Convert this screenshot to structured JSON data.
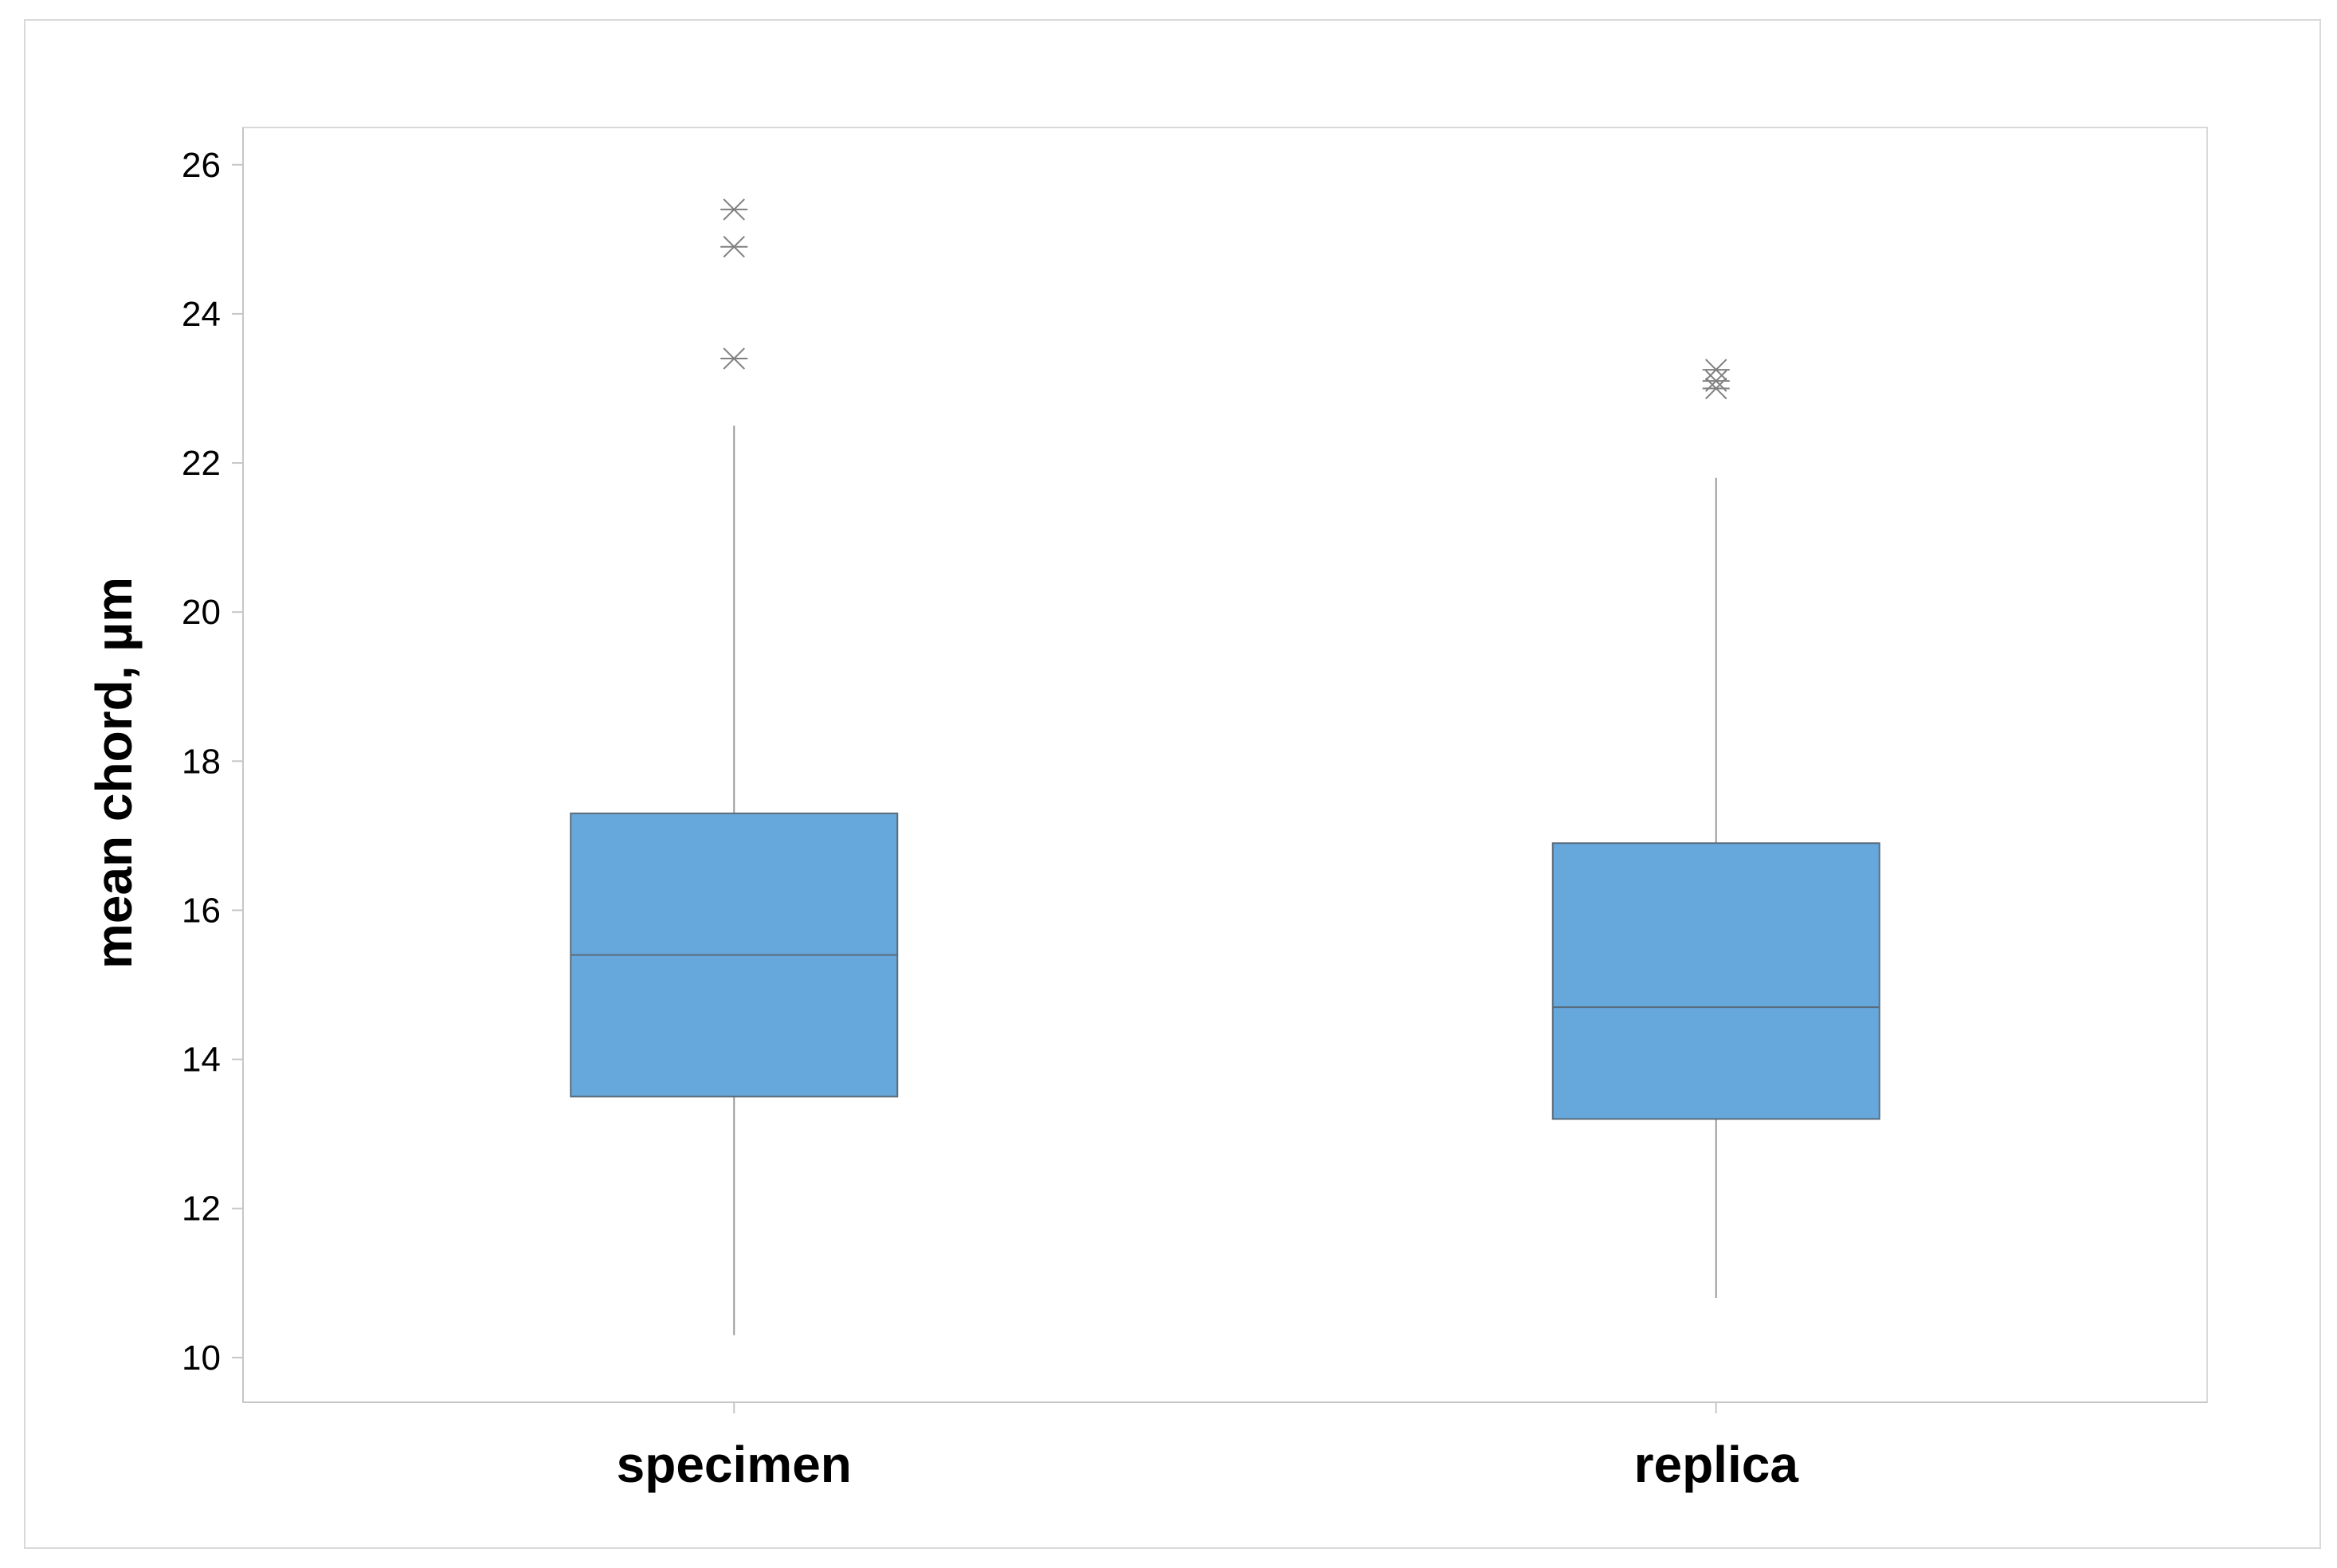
{
  "chart_data": {
    "type": "box",
    "title": "",
    "xlabel": "",
    "ylabel": "mean chord, µm",
    "ylim": [
      9.4,
      26.5
    ],
    "yticks": [
      10,
      12,
      14,
      16,
      18,
      20,
      22,
      24,
      26
    ],
    "grid": false,
    "categories": [
      "specimen",
      "replica"
    ],
    "boxes": [
      {
        "category": "specimen",
        "whisker_low": 10.3,
        "q1": 13.5,
        "median": 15.4,
        "q3": 17.3,
        "whisker_high": 22.5,
        "outliers": [
          23.4,
          24.9,
          25.4
        ]
      },
      {
        "category": "replica",
        "whisker_low": 10.8,
        "q1": 13.2,
        "median": 14.7,
        "q3": 16.9,
        "whisker_high": 21.8,
        "outliers": [
          23.0,
          23.1,
          23.25
        ]
      }
    ],
    "colors": {
      "box_fill": "#66a8dc",
      "box_stroke": "#5a6b7a",
      "whisker": "#9a9a9a",
      "outlier": "#808080",
      "axis": "#c6c6c6"
    }
  }
}
